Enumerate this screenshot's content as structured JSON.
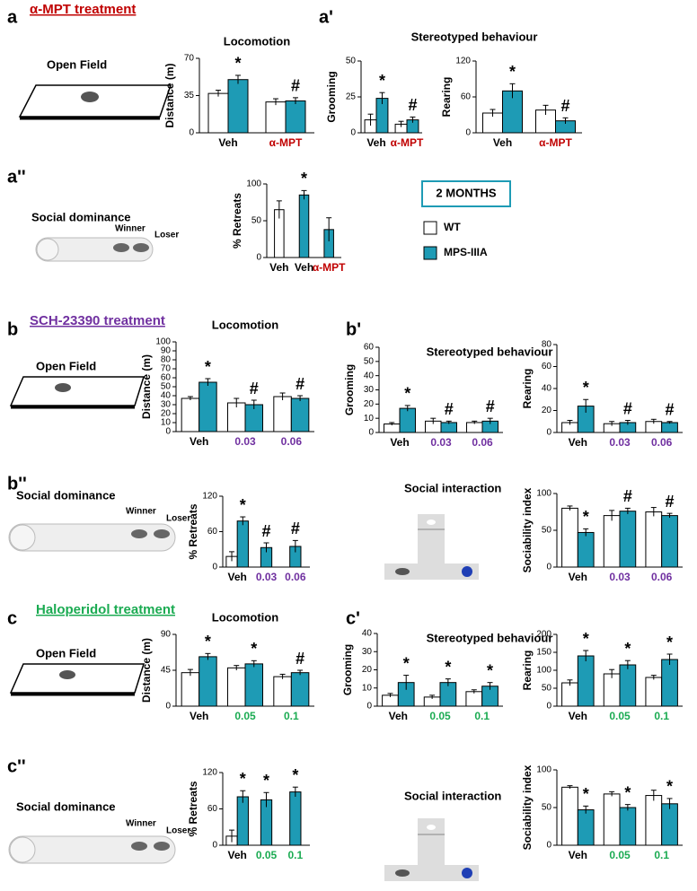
{
  "labels": {
    "a": "a",
    "a1": "a'",
    "a2": "a''",
    "b": "b",
    "b1": "b'",
    "b2": "b''",
    "c": "c",
    "c1": "c'",
    "c2": "c''",
    "treat_a": "α-MPT treatment",
    "treat_b": "SCH-23390 treatment",
    "treat_c": "Haloperidol treatment",
    "stereo_a": "Stereotyped behaviour",
    "stereo_b": "Stereotyped behaviour",
    "stereo_c": "Stereotyped behaviour",
    "open_a": "Open Field",
    "open_b": "Open Field",
    "open_c": "Open Field",
    "social_a": "Social dominance",
    "social_b": "Social dominance",
    "social_c": "Social dominance",
    "winner_a": "Winner",
    "loser_a": "Loser",
    "winner_b": "Winner",
    "loser_b": "Loser",
    "winner_c": "Winner",
    "loser_c": "Loser",
    "inter_b": "Social interaction",
    "inter_c": "Social interaction"
  },
  "legend": {
    "title": "2 MONTHS",
    "items": [
      {
        "name": "WT",
        "color": "#ffffff"
      },
      {
        "name": "MPS-IIIA",
        "color": "#1e9bb5"
      }
    ]
  },
  "chart_data": [
    {
      "type": "bar",
      "title": "Locomotion",
      "y_label": "Distance (m)",
      "ylim": [
        0,
        70
      ],
      "yticks": [
        0,
        35,
        70
      ],
      "categories": [
        "Veh",
        "α-MPT"
      ],
      "category_colors": [
        "#000000",
        "#c00000"
      ],
      "series": [
        {
          "color": "#ffffff",
          "values": [
            37,
            29
          ],
          "errors": [
            3,
            3
          ],
          "annotations": [
            null,
            null
          ]
        },
        {
          "color": "#1e9bb5",
          "values": [
            50,
            30
          ],
          "errors": [
            4,
            3
          ],
          "annotations": [
            "*",
            "#"
          ]
        }
      ]
    },
    {
      "type": "bar",
      "y_label": "Grooming",
      "ylim": [
        0,
        50
      ],
      "yticks": [
        0,
        25,
        50
      ],
      "categories": [
        "Veh",
        "α-MPT"
      ],
      "category_colors": [
        "#000000",
        "#c00000"
      ],
      "series": [
        {
          "color": "#ffffff",
          "values": [
            9,
            6
          ],
          "errors": [
            4,
            2
          ],
          "annotations": [
            null,
            null
          ]
        },
        {
          "color": "#1e9bb5",
          "values": [
            24,
            9
          ],
          "errors": [
            4,
            2
          ],
          "annotations": [
            "*",
            "#"
          ]
        }
      ]
    },
    {
      "type": "bar",
      "y_label": "Rearing",
      "ylim": [
        0,
        120
      ],
      "yticks": [
        0,
        60,
        120
      ],
      "categories": [
        "Veh",
        "α-MPT"
      ],
      "category_colors": [
        "#000000",
        "#c00000"
      ],
      "series": [
        {
          "color": "#ffffff",
          "values": [
            33,
            38
          ],
          "errors": [
            6,
            8
          ],
          "annotations": [
            null,
            null
          ]
        },
        {
          "color": "#1e9bb5",
          "values": [
            70,
            20
          ],
          "errors": [
            12,
            5
          ],
          "annotations": [
            "*",
            "#"
          ]
        }
      ]
    },
    {
      "type": "bar",
      "y_label": "% Retreats",
      "ylim": [
        0,
        100
      ],
      "yticks": [
        0,
        50,
        100
      ],
      "categories": [
        "Veh",
        "Veh",
        "α-MPT"
      ],
      "category_colors": [
        "#000000",
        "#000000",
        "#c00000"
      ],
      "series": [
        {
          "color": "#ffffff",
          "values": [
            65,
            null,
            null
          ],
          "errors": [
            12,
            null,
            null
          ],
          "annotations": [
            null,
            null,
            null
          ]
        },
        {
          "color": "#1e9bb5",
          "values": [
            null,
            85,
            38
          ],
          "errors": [
            null,
            6,
            16
          ],
          "annotations": [
            null,
            "*",
            null
          ]
        }
      ]
    },
    {
      "type": "bar",
      "title": "Locomotion",
      "y_label": "Distance (m)",
      "ylim": [
        0,
        100
      ],
      "yticks": [
        0,
        10,
        20,
        30,
        40,
        50,
        60,
        70,
        80,
        90,
        100
      ],
      "categories": [
        "Veh",
        "0.03",
        "0.06"
      ],
      "category_colors": [
        "#000000",
        "#7030a0",
        "#7030a0"
      ],
      "series": [
        {
          "color": "#ffffff",
          "values": [
            37,
            32,
            39
          ],
          "errors": [
            2,
            5,
            4
          ],
          "annotations": [
            null,
            null,
            null
          ]
        },
        {
          "color": "#1e9bb5",
          "values": [
            55,
            30,
            37
          ],
          "errors": [
            4,
            5,
            3
          ],
          "annotations": [
            "*",
            "#",
            "#"
          ]
        }
      ]
    },
    {
      "type": "bar",
      "y_label": "Grooming",
      "ylim": [
        0,
        60
      ],
      "yticks": [
        0,
        10,
        20,
        30,
        40,
        50,
        60
      ],
      "categories": [
        "Veh",
        "0.03",
        "0.06"
      ],
      "category_colors": [
        "#000000",
        "#7030a0",
        "#7030a0"
      ],
      "series": [
        {
          "color": "#ffffff",
          "values": [
            6,
            8,
            7
          ],
          "errors": [
            1,
            2,
            1
          ],
          "annotations": [
            null,
            null,
            null
          ]
        },
        {
          "color": "#1e9bb5",
          "values": [
            17,
            7,
            8
          ],
          "errors": [
            2,
            1,
            2
          ],
          "annotations": [
            "*",
            "#",
            "#"
          ]
        }
      ]
    },
    {
      "type": "bar",
      "y_label": "Rearing",
      "ylim": [
        0,
        80
      ],
      "yticks": [
        0,
        20,
        40,
        60,
        80
      ],
      "categories": [
        "Veh",
        "0.03",
        "0.06"
      ],
      "category_colors": [
        "#000000",
        "#7030a0",
        "#7030a0"
      ],
      "series": [
        {
          "color": "#ffffff",
          "values": [
            9,
            8,
            10
          ],
          "errors": [
            2,
            2,
            2
          ],
          "annotations": [
            null,
            null,
            null
          ]
        },
        {
          "color": "#1e9bb5",
          "values": [
            24,
            9,
            9
          ],
          "errors": [
            6,
            2,
            1
          ],
          "annotations": [
            "*",
            "#",
            "#"
          ]
        }
      ]
    },
    {
      "type": "bar",
      "y_label": "% Retreats",
      "ylim": [
        0,
        120
      ],
      "yticks": [
        0,
        60,
        120
      ],
      "categories": [
        "Veh",
        "0.03",
        "0.06"
      ],
      "category_colors": [
        "#000000",
        "#7030a0",
        "#7030a0"
      ],
      "series": [
        {
          "color": "#ffffff",
          "values": [
            18,
            null,
            null
          ],
          "errors": [
            8,
            null,
            null
          ],
          "annotations": [
            null,
            null,
            null
          ]
        },
        {
          "color": "#1e9bb5",
          "values": [
            78,
            33,
            35
          ],
          "errors": [
            7,
            8,
            10
          ],
          "annotations": [
            "*",
            "#",
            "#"
          ]
        }
      ]
    },
    {
      "type": "bar",
      "y_label": "Sociability index",
      "ylim": [
        0,
        100
      ],
      "yticks": [
        0,
        50,
        100
      ],
      "categories": [
        "Veh",
        "0.03",
        "0.06"
      ],
      "category_colors": [
        "#000000",
        "#7030a0",
        "#7030a0"
      ],
      "series": [
        {
          "color": "#ffffff",
          "values": [
            80,
            70,
            75
          ],
          "errors": [
            3,
            7,
            6
          ],
          "annotations": [
            null,
            null,
            null
          ]
        },
        {
          "color": "#1e9bb5",
          "values": [
            47,
            76,
            70
          ],
          "errors": [
            5,
            4,
            3
          ],
          "annotations": [
            "*",
            "#",
            "#"
          ]
        }
      ]
    },
    {
      "type": "bar",
      "title": "Locomotion",
      "y_label": "Distance (m)",
      "ylim": [
        0,
        90
      ],
      "yticks": [
        0,
        45,
        90
      ],
      "categories": [
        "Veh",
        "0.05",
        "0.1"
      ],
      "category_colors": [
        "#000000",
        "#1bab52",
        "#1bab52"
      ],
      "series": [
        {
          "color": "#ffffff",
          "values": [
            42,
            48,
            37
          ],
          "errors": [
            4,
            3,
            3
          ],
          "annotations": [
            null,
            null,
            null
          ]
        },
        {
          "color": "#1e9bb5",
          "values": [
            62,
            53,
            42
          ],
          "errors": [
            4,
            4,
            3
          ],
          "annotations": [
            "*",
            "*",
            "#"
          ]
        }
      ]
    },
    {
      "type": "bar",
      "y_label": "Grooming",
      "ylim": [
        0,
        40
      ],
      "yticks": [
        0,
        10,
        20,
        30,
        40
      ],
      "categories": [
        "Veh",
        "0.05",
        "0.1"
      ],
      "category_colors": [
        "#000000",
        "#1bab52",
        "#1bab52"
      ],
      "series": [
        {
          "color": "#ffffff",
          "values": [
            6,
            5,
            8
          ],
          "errors": [
            1,
            1,
            1
          ],
          "annotations": [
            null,
            null,
            null
          ]
        },
        {
          "color": "#1e9bb5",
          "values": [
            13,
            13,
            11
          ],
          "errors": [
            4,
            2,
            2
          ],
          "annotations": [
            "*",
            "*",
            "*"
          ]
        }
      ]
    },
    {
      "type": "bar",
      "y_label": "Rearing",
      "ylim": [
        0,
        200
      ],
      "yticks": [
        0,
        50,
        100,
        150,
        200
      ],
      "categories": [
        "Veh",
        "0.05",
        "0.1"
      ],
      "category_colors": [
        "#000000",
        "#1bab52",
        "#1bab52"
      ],
      "series": [
        {
          "color": "#ffffff",
          "values": [
            65,
            90,
            80
          ],
          "errors": [
            8,
            12,
            6
          ],
          "annotations": [
            null,
            null,
            null
          ]
        },
        {
          "color": "#1e9bb5",
          "values": [
            140,
            115,
            130
          ],
          "errors": [
            15,
            12,
            15
          ],
          "annotations": [
            "*",
            "*",
            "*"
          ]
        }
      ]
    },
    {
      "type": "bar",
      "y_label": "% Retreats",
      "ylim": [
        0,
        120
      ],
      "yticks": [
        0,
        60,
        120
      ],
      "categories": [
        "Veh",
        "0.05",
        "0.1"
      ],
      "category_colors": [
        "#000000",
        "#1bab52",
        "#1bab52"
      ],
      "series": [
        {
          "color": "#ffffff",
          "values": [
            15,
            null,
            null
          ],
          "errors": [
            10,
            null,
            null
          ],
          "annotations": [
            null,
            null,
            null
          ]
        },
        {
          "color": "#1e9bb5",
          "values": [
            80,
            75,
            88
          ],
          "errors": [
            10,
            12,
            8
          ],
          "annotations": [
            "*",
            "*",
            "*"
          ]
        }
      ]
    },
    {
      "type": "bar",
      "y_label": "Sociability index",
      "ylim": [
        0,
        100
      ],
      "yticks": [
        0,
        50,
        100
      ],
      "categories": [
        "Veh",
        "0.05",
        "0.1"
      ],
      "category_colors": [
        "#000000",
        "#1bab52",
        "#1bab52"
      ],
      "series": [
        {
          "color": "#ffffff",
          "values": [
            77,
            68,
            66
          ],
          "errors": [
            2,
            3,
            7
          ],
          "annotations": [
            null,
            null,
            null
          ]
        },
        {
          "color": "#1e9bb5",
          "values": [
            47,
            50,
            55
          ],
          "errors": [
            5,
            4,
            7
          ],
          "annotations": [
            "*",
            "*",
            "*"
          ]
        }
      ]
    }
  ]
}
